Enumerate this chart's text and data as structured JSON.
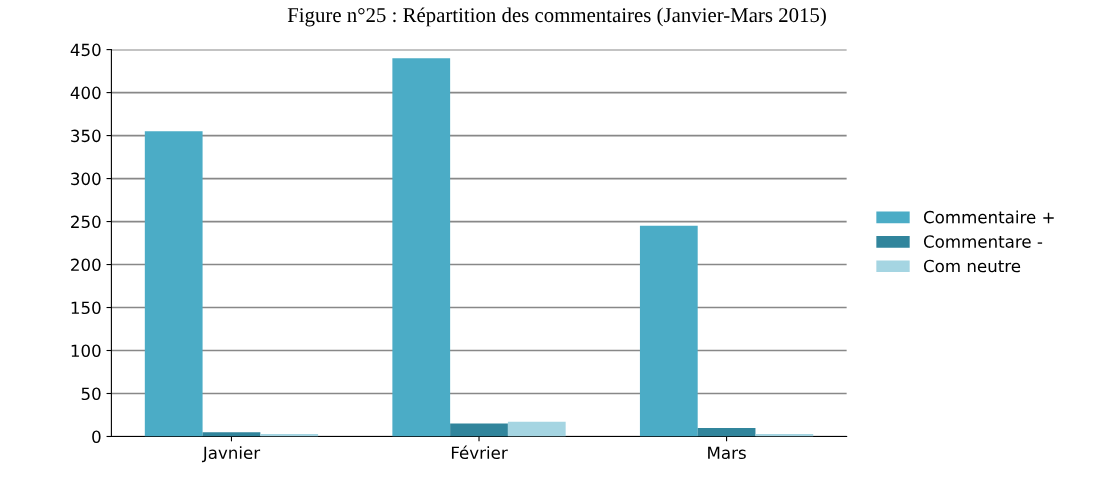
{
  "chart_data": {
    "type": "bar",
    "title": "Figure n°25 : Répartition des commentaires (Janvier-Mars 2015)",
    "categories": [
      "Javnier",
      "Février",
      "Mars"
    ],
    "series": [
      {
        "name": "Commentaire +",
        "color": "#4bacc6",
        "values": [
          355,
          440,
          245
        ]
      },
      {
        "name": "Commentare -",
        "color": "#31859c",
        "values": [
          5,
          15,
          10
        ]
      },
      {
        "name": "Com neutre",
        "color": "#a5d5e2",
        "values": [
          3,
          17,
          3
        ]
      }
    ],
    "ylim": [
      0,
      450
    ],
    "yticks": [
      0,
      50,
      100,
      150,
      200,
      250,
      300,
      350,
      400,
      450
    ],
    "grid": "y",
    "legend": "right"
  }
}
